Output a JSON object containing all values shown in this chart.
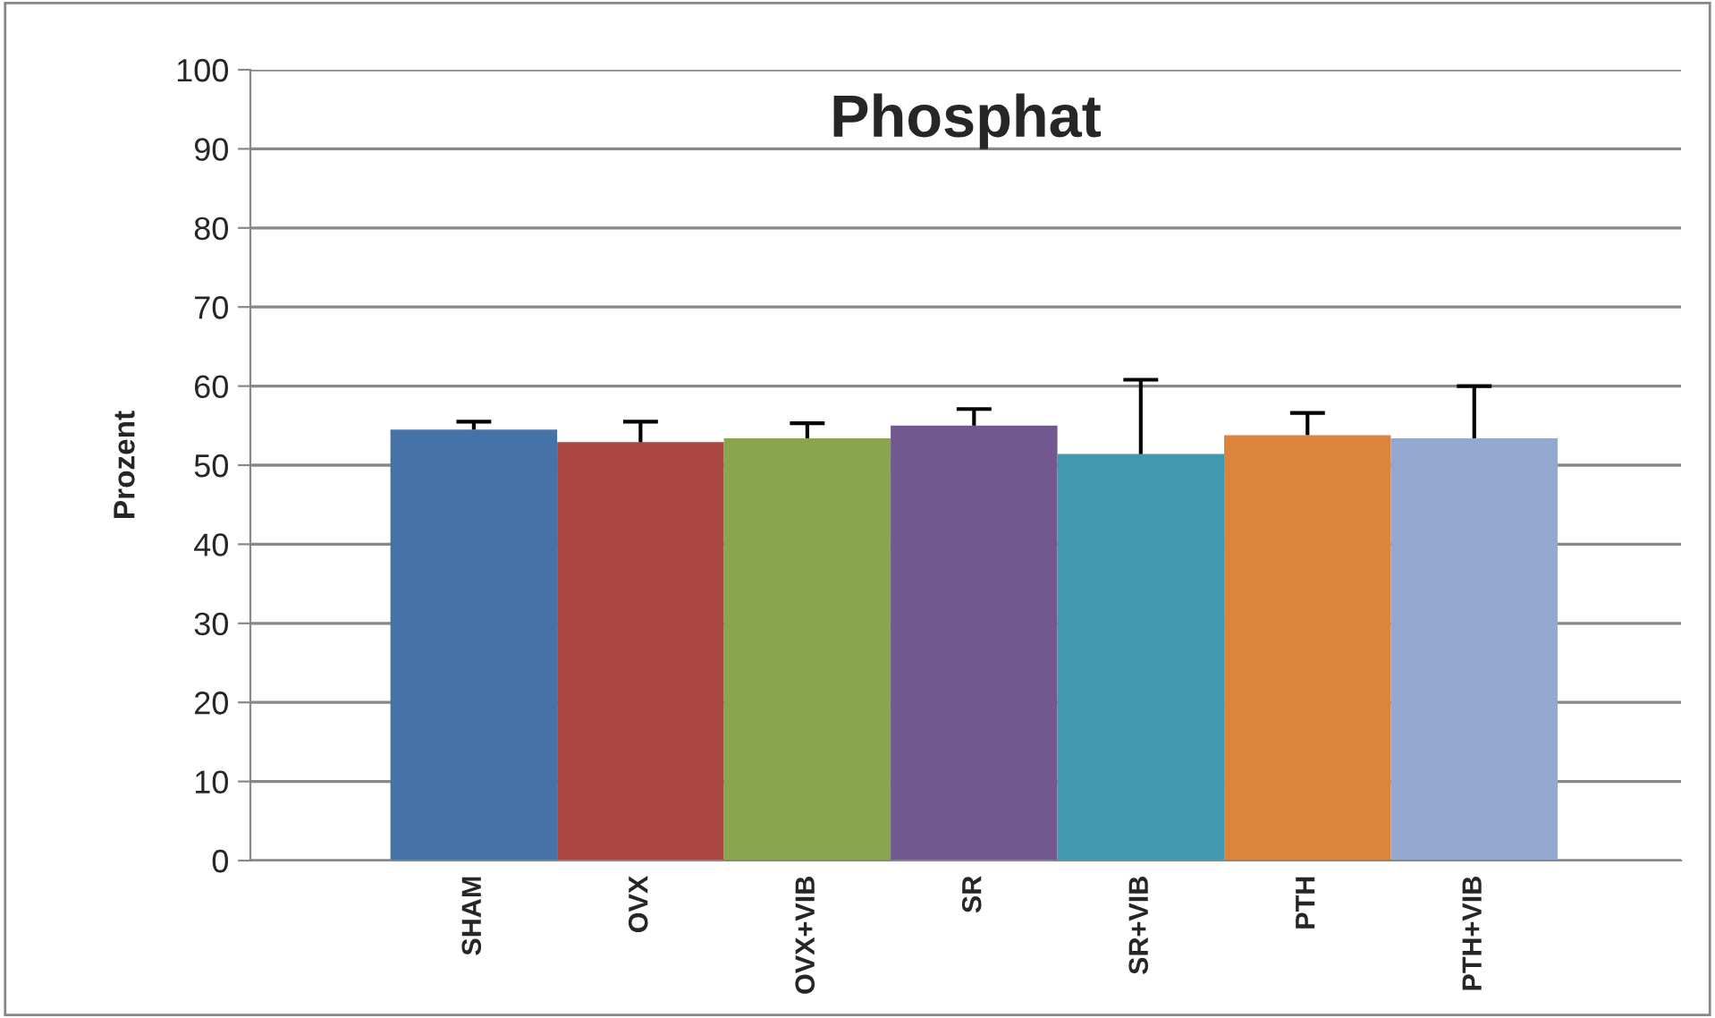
{
  "chart_data": {
    "type": "bar",
    "title": "Phosphat",
    "ylabel": "Prozent",
    "categories": [
      "SHAM",
      "OVX",
      "OVX+VIB",
      "SR",
      "SR+VIB",
      "PTH",
      "PTH+VIB"
    ],
    "values": [
      54.5,
      52.9,
      53.4,
      55.0,
      51.4,
      53.8,
      53.4
    ],
    "colors": [
      "#4572a7",
      "#aa4643",
      "#89a54e",
      "#71588f",
      "#4198af",
      "#db843d",
      "#93a9cf"
    ],
    "errors": [
      [
        54.5,
        55.5
      ],
      [
        52.9,
        55.5
      ],
      [
        53.4,
        55.3
      ],
      [
        55.0,
        57.1
      ],
      [
        51.4,
        60.8
      ],
      [
        53.8,
        56.6
      ],
      [
        53.4,
        60.0
      ]
    ],
    "ylim": [
      0,
      100
    ],
    "yticks": [
      0,
      10,
      20,
      30,
      40,
      50,
      60,
      70,
      80,
      90,
      100
    ],
    "grid": "y",
    "legend": false
  }
}
